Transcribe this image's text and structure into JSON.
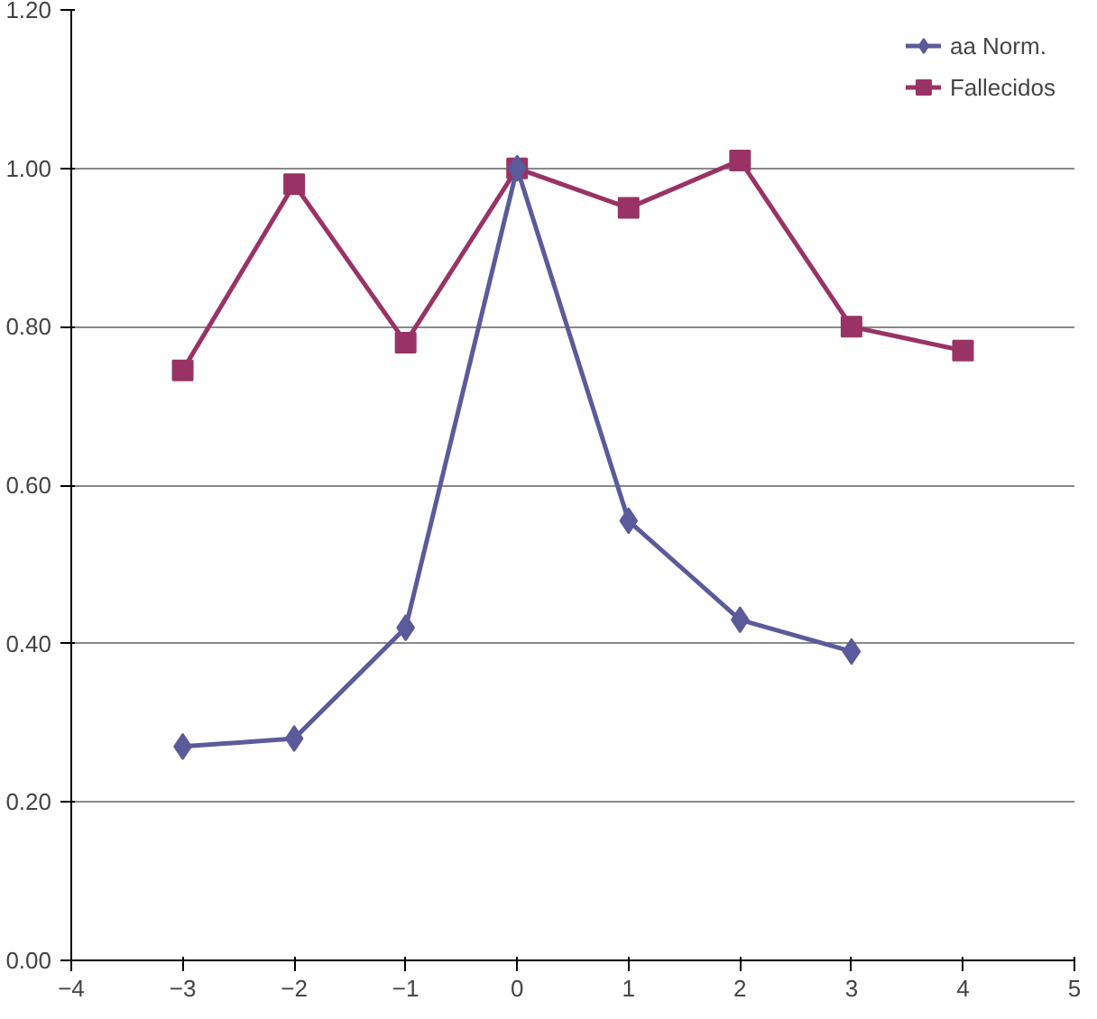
{
  "chart_data": {
    "type": "line",
    "x": [
      -3,
      -2,
      -1,
      0,
      1,
      2,
      3
    ],
    "series": [
      {
        "name": "aa Norm.",
        "color": "#5b5b9b",
        "marker": "diamond",
        "values": [
          0.27,
          0.28,
          0.42,
          1.0,
          0.555,
          0.43,
          0.39
        ]
      },
      {
        "name": "Fallecidos",
        "color": "#993366",
        "marker": "square",
        "x": [
          -3,
          -2,
          -1,
          0,
          1,
          2,
          3,
          4
        ],
        "values": [
          0.745,
          0.98,
          0.78,
          1.0,
          0.95,
          1.01,
          0.8,
          0.77
        ]
      }
    ],
    "xlim": [
      -4,
      5
    ],
    "xticks": [
      -4,
      -3,
      -2,
      -1,
      0,
      1,
      2,
      3,
      4,
      5
    ],
    "ylim": [
      0,
      1.2
    ],
    "yticks": [
      {
        "value": 0,
        "label": "0.00"
      },
      {
        "value": 0.2,
        "label": "0.20"
      },
      {
        "value": 0.4,
        "label": "0.40"
      },
      {
        "value": 0.6,
        "label": "0.60"
      },
      {
        "value": 0.8,
        "label": "0.80"
      },
      {
        "value": 1.0,
        "label": "1.00"
      },
      {
        "value": 1.2,
        "label": "1.20"
      }
    ],
    "grid": "y",
    "legend": "top right"
  }
}
